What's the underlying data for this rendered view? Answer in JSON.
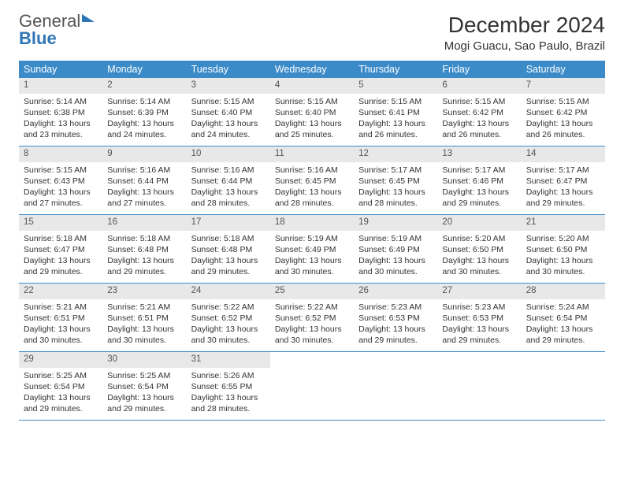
{
  "logo": {
    "word1": "General",
    "word2": "Blue"
  },
  "title": "December 2024",
  "location": "Mogi Guacu, Sao Paulo, Brazil",
  "weekdays": [
    "Sunday",
    "Monday",
    "Tuesday",
    "Wednesday",
    "Thursday",
    "Friday",
    "Saturday"
  ],
  "colors": {
    "header_bg": "#3b8bc9",
    "header_text": "#ffffff",
    "daynum_bg": "#e8e8e8",
    "row_border": "#3b8bc9",
    "logo_blue": "#2f75b5"
  },
  "typography": {
    "title_fontsize": 28,
    "location_fontsize": 15,
    "weekday_fontsize": 12.5,
    "cell_fontsize": 10.5
  },
  "weeks": [
    [
      {
        "n": "1",
        "sr": "Sunrise: 5:14 AM",
        "ss": "Sunset: 6:38 PM",
        "d1": "Daylight: 13 hours",
        "d2": "and 23 minutes."
      },
      {
        "n": "2",
        "sr": "Sunrise: 5:14 AM",
        "ss": "Sunset: 6:39 PM",
        "d1": "Daylight: 13 hours",
        "d2": "and 24 minutes."
      },
      {
        "n": "3",
        "sr": "Sunrise: 5:15 AM",
        "ss": "Sunset: 6:40 PM",
        "d1": "Daylight: 13 hours",
        "d2": "and 24 minutes."
      },
      {
        "n": "4",
        "sr": "Sunrise: 5:15 AM",
        "ss": "Sunset: 6:40 PM",
        "d1": "Daylight: 13 hours",
        "d2": "and 25 minutes."
      },
      {
        "n": "5",
        "sr": "Sunrise: 5:15 AM",
        "ss": "Sunset: 6:41 PM",
        "d1": "Daylight: 13 hours",
        "d2": "and 26 minutes."
      },
      {
        "n": "6",
        "sr": "Sunrise: 5:15 AM",
        "ss": "Sunset: 6:42 PM",
        "d1": "Daylight: 13 hours",
        "d2": "and 26 minutes."
      },
      {
        "n": "7",
        "sr": "Sunrise: 5:15 AM",
        "ss": "Sunset: 6:42 PM",
        "d1": "Daylight: 13 hours",
        "d2": "and 26 minutes."
      }
    ],
    [
      {
        "n": "8",
        "sr": "Sunrise: 5:15 AM",
        "ss": "Sunset: 6:43 PM",
        "d1": "Daylight: 13 hours",
        "d2": "and 27 minutes."
      },
      {
        "n": "9",
        "sr": "Sunrise: 5:16 AM",
        "ss": "Sunset: 6:44 PM",
        "d1": "Daylight: 13 hours",
        "d2": "and 27 minutes."
      },
      {
        "n": "10",
        "sr": "Sunrise: 5:16 AM",
        "ss": "Sunset: 6:44 PM",
        "d1": "Daylight: 13 hours",
        "d2": "and 28 minutes."
      },
      {
        "n": "11",
        "sr": "Sunrise: 5:16 AM",
        "ss": "Sunset: 6:45 PM",
        "d1": "Daylight: 13 hours",
        "d2": "and 28 minutes."
      },
      {
        "n": "12",
        "sr": "Sunrise: 5:17 AM",
        "ss": "Sunset: 6:45 PM",
        "d1": "Daylight: 13 hours",
        "d2": "and 28 minutes."
      },
      {
        "n": "13",
        "sr": "Sunrise: 5:17 AM",
        "ss": "Sunset: 6:46 PM",
        "d1": "Daylight: 13 hours",
        "d2": "and 29 minutes."
      },
      {
        "n": "14",
        "sr": "Sunrise: 5:17 AM",
        "ss": "Sunset: 6:47 PM",
        "d1": "Daylight: 13 hours",
        "d2": "and 29 minutes."
      }
    ],
    [
      {
        "n": "15",
        "sr": "Sunrise: 5:18 AM",
        "ss": "Sunset: 6:47 PM",
        "d1": "Daylight: 13 hours",
        "d2": "and 29 minutes."
      },
      {
        "n": "16",
        "sr": "Sunrise: 5:18 AM",
        "ss": "Sunset: 6:48 PM",
        "d1": "Daylight: 13 hours",
        "d2": "and 29 minutes."
      },
      {
        "n": "17",
        "sr": "Sunrise: 5:18 AM",
        "ss": "Sunset: 6:48 PM",
        "d1": "Daylight: 13 hours",
        "d2": "and 29 minutes."
      },
      {
        "n": "18",
        "sr": "Sunrise: 5:19 AM",
        "ss": "Sunset: 6:49 PM",
        "d1": "Daylight: 13 hours",
        "d2": "and 30 minutes."
      },
      {
        "n": "19",
        "sr": "Sunrise: 5:19 AM",
        "ss": "Sunset: 6:49 PM",
        "d1": "Daylight: 13 hours",
        "d2": "and 30 minutes."
      },
      {
        "n": "20",
        "sr": "Sunrise: 5:20 AM",
        "ss": "Sunset: 6:50 PM",
        "d1": "Daylight: 13 hours",
        "d2": "and 30 minutes."
      },
      {
        "n": "21",
        "sr": "Sunrise: 5:20 AM",
        "ss": "Sunset: 6:50 PM",
        "d1": "Daylight: 13 hours",
        "d2": "and 30 minutes."
      }
    ],
    [
      {
        "n": "22",
        "sr": "Sunrise: 5:21 AM",
        "ss": "Sunset: 6:51 PM",
        "d1": "Daylight: 13 hours",
        "d2": "and 30 minutes."
      },
      {
        "n": "23",
        "sr": "Sunrise: 5:21 AM",
        "ss": "Sunset: 6:51 PM",
        "d1": "Daylight: 13 hours",
        "d2": "and 30 minutes."
      },
      {
        "n": "24",
        "sr": "Sunrise: 5:22 AM",
        "ss": "Sunset: 6:52 PM",
        "d1": "Daylight: 13 hours",
        "d2": "and 30 minutes."
      },
      {
        "n": "25",
        "sr": "Sunrise: 5:22 AM",
        "ss": "Sunset: 6:52 PM",
        "d1": "Daylight: 13 hours",
        "d2": "and 30 minutes."
      },
      {
        "n": "26",
        "sr": "Sunrise: 5:23 AM",
        "ss": "Sunset: 6:53 PM",
        "d1": "Daylight: 13 hours",
        "d2": "and 29 minutes."
      },
      {
        "n": "27",
        "sr": "Sunrise: 5:23 AM",
        "ss": "Sunset: 6:53 PM",
        "d1": "Daylight: 13 hours",
        "d2": "and 29 minutes."
      },
      {
        "n": "28",
        "sr": "Sunrise: 5:24 AM",
        "ss": "Sunset: 6:54 PM",
        "d1": "Daylight: 13 hours",
        "d2": "and 29 minutes."
      }
    ],
    [
      {
        "n": "29",
        "sr": "Sunrise: 5:25 AM",
        "ss": "Sunset: 6:54 PM",
        "d1": "Daylight: 13 hours",
        "d2": "and 29 minutes."
      },
      {
        "n": "30",
        "sr": "Sunrise: 5:25 AM",
        "ss": "Sunset: 6:54 PM",
        "d1": "Daylight: 13 hours",
        "d2": "and 29 minutes."
      },
      {
        "n": "31",
        "sr": "Sunrise: 5:26 AM",
        "ss": "Sunset: 6:55 PM",
        "d1": "Daylight: 13 hours",
        "d2": "and 28 minutes."
      },
      null,
      null,
      null,
      null
    ]
  ]
}
